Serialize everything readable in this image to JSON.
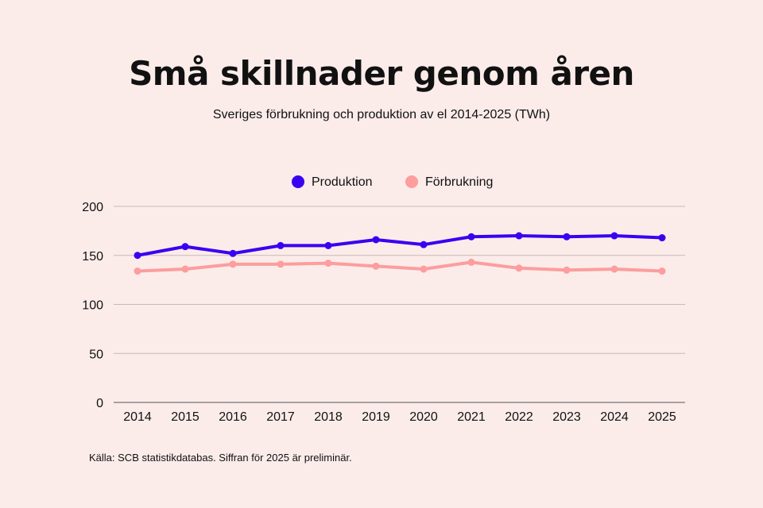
{
  "chart_data": {
    "type": "line",
    "title": "Små skillnader genom åren",
    "subtitle": "Sveriges förbrukning och produktion av el 2014-2025 (TWh)",
    "x": [
      "2014",
      "2015",
      "2016",
      "2017",
      "2018",
      "2019",
      "2020",
      "2021",
      "2022",
      "2023",
      "2024",
      "2025"
    ],
    "series": [
      {
        "name": "Produktion",
        "color": "#3a00f0",
        "values": [
          150,
          159,
          152,
          160,
          160,
          166,
          161,
          169,
          170,
          169,
          170,
          168
        ]
      },
      {
        "name": "Förbrukning",
        "color": "#fd9d9d",
        "values": [
          134,
          136,
          141,
          141,
          142,
          139,
          136,
          143,
          137,
          135,
          136,
          134
        ]
      }
    ],
    "ylim": [
      0,
      200
    ],
    "yticks": [
      0,
      50,
      100,
      150,
      200
    ],
    "grid": true,
    "legend": "top-center",
    "source": "Källa: SCB statistikdatabas. Siffran för 2025 är preliminär."
  }
}
